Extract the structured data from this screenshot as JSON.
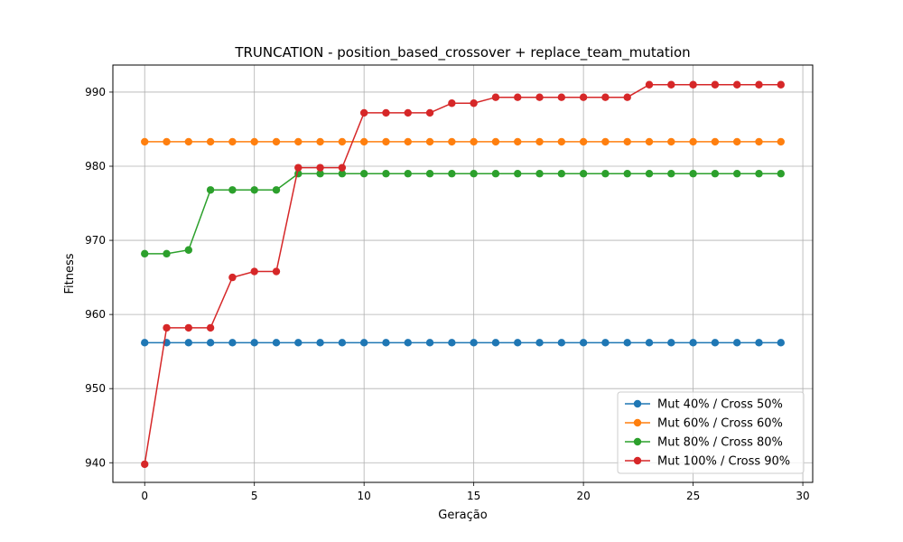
{
  "chart_data": {
    "type": "line",
    "title": "TRUNCATION - position_based_crossover + replace_team_mutation",
    "xlabel": "Geração",
    "ylabel": "Fitness",
    "xlim": [
      -1.45,
      30.45
    ],
    "ylim": [
      937.35,
      993.65
    ],
    "xticks": [
      0,
      5,
      10,
      15,
      20,
      25,
      30
    ],
    "yticks": [
      940,
      950,
      960,
      970,
      980,
      990
    ],
    "grid": true,
    "legend_position": "lower-right",
    "x": [
      0,
      1,
      2,
      3,
      4,
      5,
      6,
      7,
      8,
      9,
      10,
      11,
      12,
      13,
      14,
      15,
      16,
      17,
      18,
      19,
      20,
      21,
      22,
      23,
      24,
      25,
      26,
      27,
      28,
      29
    ],
    "series": [
      {
        "name": "Mut 40% / Cross 50%",
        "color": "#1f77b4",
        "values": [
          956.2,
          956.2,
          956.2,
          956.2,
          956.2,
          956.2,
          956.2,
          956.2,
          956.2,
          956.2,
          956.2,
          956.2,
          956.2,
          956.2,
          956.2,
          956.2,
          956.2,
          956.2,
          956.2,
          956.2,
          956.2,
          956.2,
          956.2,
          956.2,
          956.2,
          956.2,
          956.2,
          956.2,
          956.2,
          956.2
        ]
      },
      {
        "name": "Mut 60% / Cross 60%",
        "color": "#ff7f0e",
        "values": [
          983.3,
          983.3,
          983.3,
          983.3,
          983.3,
          983.3,
          983.3,
          983.3,
          983.3,
          983.3,
          983.3,
          983.3,
          983.3,
          983.3,
          983.3,
          983.3,
          983.3,
          983.3,
          983.3,
          983.3,
          983.3,
          983.3,
          983.3,
          983.3,
          983.3,
          983.3,
          983.3,
          983.3,
          983.3,
          983.3
        ]
      },
      {
        "name": "Mut 80% / Cross 80%",
        "color": "#2ca02c",
        "values": [
          968.2,
          968.2,
          968.7,
          976.8,
          976.8,
          976.8,
          976.8,
          979.0,
          979.0,
          979.0,
          979.0,
          979.0,
          979.0,
          979.0,
          979.0,
          979.0,
          979.0,
          979.0,
          979.0,
          979.0,
          979.0,
          979.0,
          979.0,
          979.0,
          979.0,
          979.0,
          979.0,
          979.0,
          979.0,
          979.0
        ]
      },
      {
        "name": "Mut 100% / Cross 90%",
        "color": "#d62728",
        "values": [
          939.8,
          958.2,
          958.2,
          958.2,
          965.0,
          965.8,
          965.8,
          979.8,
          979.8,
          979.8,
          987.2,
          987.2,
          987.2,
          987.2,
          988.5,
          988.5,
          989.3,
          989.3,
          989.3,
          989.3,
          989.3,
          989.3,
          989.3,
          991.0,
          991.0,
          991.0,
          991.0,
          991.0,
          991.0,
          991.0
        ]
      }
    ]
  }
}
